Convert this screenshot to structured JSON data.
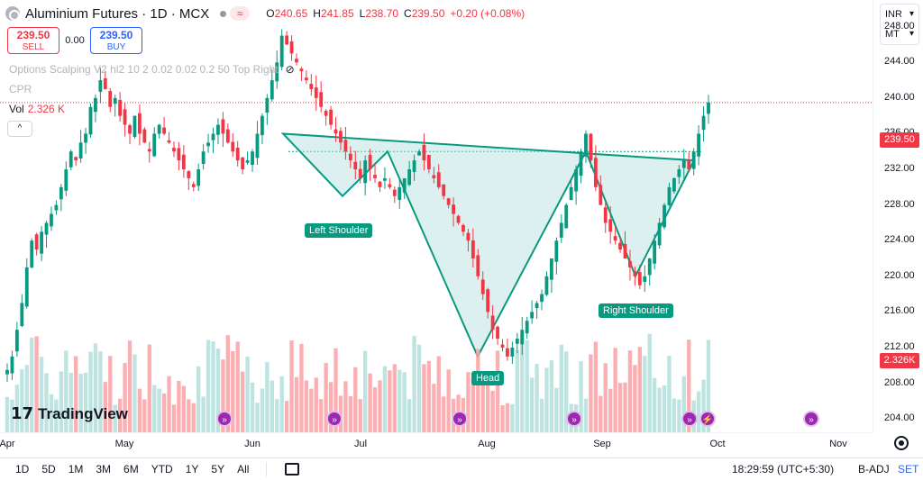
{
  "header": {
    "title": "Aluminium Futures · 1D · MCX",
    "wave_icon": "≈",
    "ohlc": {
      "o_label": "O",
      "o": "240.65",
      "h_label": "H",
      "h": "241.85",
      "l_label": "L",
      "l": "238.70",
      "c_label": "C",
      "c": "239.50",
      "change": "+0.20 (+0.08%)"
    }
  },
  "trade": {
    "sell_price": "239.50",
    "sell_label": "SELL",
    "spread": "0.00",
    "buy_price": "239.50",
    "buy_label": "BUY"
  },
  "indicators": {
    "options": "Options Scalping V2 hl2 10 2 0.02 0.02 0.2 50 Top Right",
    "cpr": "CPR",
    "vol_label": "Vol",
    "vol_value": "2.326 K",
    "collapse": "^"
  },
  "units": {
    "currency": "INR",
    "unit": "MT"
  },
  "yaxis": {
    "ticks": [
      "248.00",
      "244.00",
      "240.00",
      "236.00",
      "232.00",
      "228.00",
      "224.00",
      "220.00",
      "216.00",
      "212.00",
      "208.00",
      "204.00"
    ],
    "price_tag": "239.50",
    "vol_tag": "2.326K"
  },
  "xaxis": {
    "ticks": [
      "Apr",
      "May",
      "Jun",
      "Jul",
      "Aug",
      "Sep",
      "Oct",
      "Nov"
    ]
  },
  "pattern": {
    "left_shoulder": "Left Shoulder",
    "head": "Head",
    "right_shoulder": "Right Shoulder"
  },
  "logo": {
    "mark": "17",
    "text": "TradingView"
  },
  "bottombar": {
    "ranges": [
      "1D",
      "5D",
      "1M",
      "3M",
      "6M",
      "YTD",
      "1Y",
      "5Y",
      "All"
    ],
    "clock": "18:29:59 (UTC+5:30)",
    "badj": "B-ADJ",
    "set": "SET"
  },
  "colors": {
    "up": "#089981",
    "down": "#f23645",
    "pattern_fill": "#b2dfdb",
    "accent": "#2962ff"
  },
  "chart_data": {
    "type": "candlestick",
    "title": "Aluminium Futures · 1D · MCX",
    "ylim": [
      202.5,
      251
    ],
    "yticks": [
      248,
      244,
      240,
      236,
      232,
      228,
      224,
      220,
      216,
      212,
      208,
      204
    ],
    "months": [
      "Apr",
      "May",
      "Jun",
      "Jul",
      "Aug",
      "Sep",
      "Oct",
      "Nov"
    ],
    "last_price": 239.5,
    "closes": [
      209.5,
      211,
      214,
      217,
      221,
      224,
      223,
      225,
      226,
      227,
      228,
      230,
      232,
      234,
      233,
      235,
      236,
      239,
      240,
      242,
      241,
      239,
      240,
      238,
      237,
      236,
      238,
      236,
      235,
      234,
      236,
      237,
      236,
      235,
      234,
      233,
      232,
      231,
      230,
      232,
      234,
      235,
      236,
      237,
      236,
      235,
      234,
      233,
      232,
      233,
      234,
      236,
      238,
      240,
      242,
      244,
      247,
      246,
      245,
      244,
      243,
      242,
      241,
      240,
      239,
      238,
      237,
      236,
      235,
      234,
      233,
      232,
      231,
      233,
      232,
      231,
      230,
      231,
      230,
      229,
      230,
      231,
      232,
      233,
      234,
      233,
      232,
      231,
      230,
      229,
      228,
      227,
      226,
      225,
      224,
      222,
      220,
      218,
      216,
      214,
      213,
      212,
      211,
      212,
      213,
      214,
      215,
      216,
      217,
      218,
      220,
      222,
      224,
      226,
      228,
      230,
      232,
      234,
      236,
      233,
      230,
      228,
      226,
      225,
      224,
      223,
      222,
      221,
      220,
      219,
      220,
      222,
      224,
      226,
      228,
      230,
      231,
      232,
      233,
      232,
      234,
      236,
      238,
      239.5
    ]
  }
}
